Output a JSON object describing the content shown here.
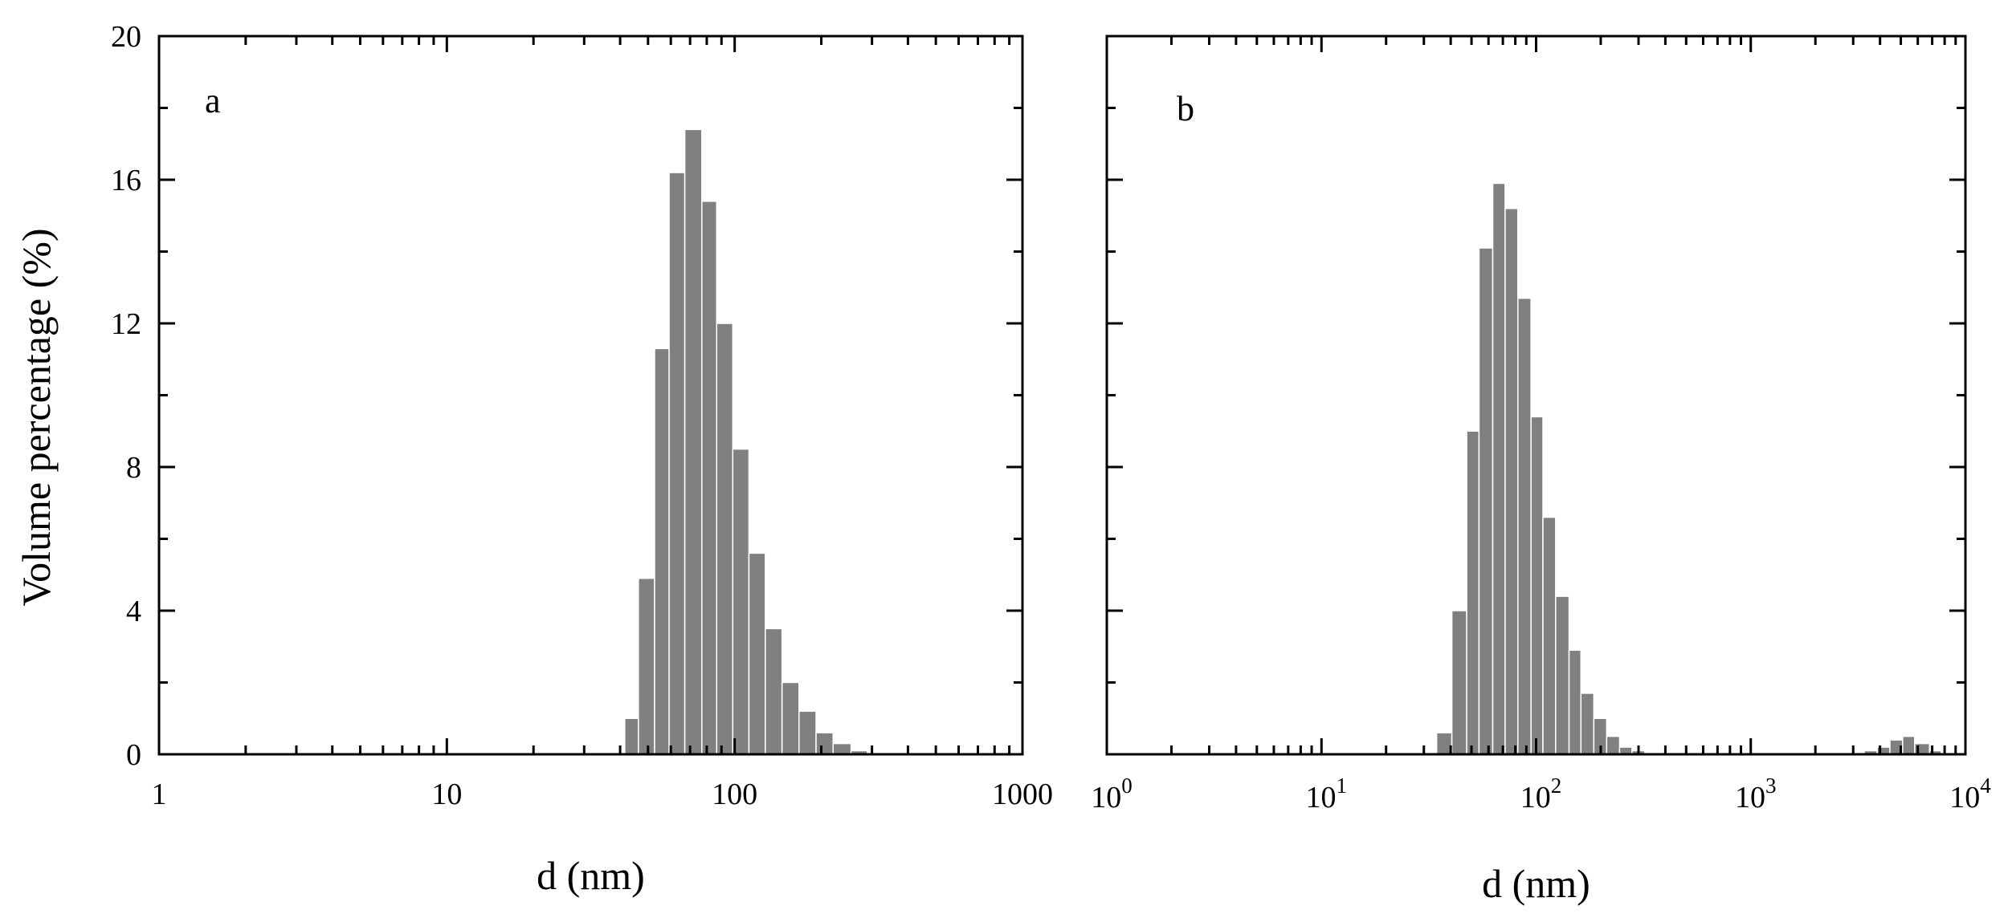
{
  "figure": {
    "ylabel": "Volume percentage (%)",
    "bar_color": "#808080"
  },
  "chart_data": [
    {
      "type": "bar",
      "panel_label": "a",
      "xlabel": "d (nm)",
      "ylabel": "Volume percentage (%)",
      "x_scale": "log",
      "xlim": [
        1,
        1000
      ],
      "ylim": [
        0,
        20
      ],
      "x_ticks": [
        1,
        10,
        100,
        1000
      ],
      "x_tick_labels": [
        "1",
        "10",
        "100",
        "1000"
      ],
      "y_ticks": [
        0,
        4,
        8,
        12,
        16,
        20
      ],
      "y_tick_labels": [
        "0",
        "4",
        "8",
        "12",
        "16",
        "20"
      ],
      "bins": [
        {
          "x0": 41.5,
          "x1": 46.3,
          "value": 1.0
        },
        {
          "x0": 46.3,
          "x1": 52.7,
          "value": 4.9
        },
        {
          "x0": 52.7,
          "x1": 59.2,
          "value": 11.3
        },
        {
          "x0": 59.2,
          "x1": 67.1,
          "value": 16.2
        },
        {
          "x0": 67.1,
          "x1": 76.9,
          "value": 17.4
        },
        {
          "x0": 76.9,
          "x1": 86.6,
          "value": 15.4
        },
        {
          "x0": 86.6,
          "x1": 98.5,
          "value": 12.0
        },
        {
          "x0": 98.5,
          "x1": 112.1,
          "value": 8.5
        },
        {
          "x0": 112.1,
          "x1": 127.8,
          "value": 5.6
        },
        {
          "x0": 127.8,
          "x1": 146.1,
          "value": 3.5
        },
        {
          "x0": 146.1,
          "x1": 167.3,
          "value": 2.0
        },
        {
          "x0": 167.3,
          "x1": 191.8,
          "value": 1.2
        },
        {
          "x0": 191.8,
          "x1": 219.8,
          "value": 0.6
        },
        {
          "x0": 219.8,
          "x1": 253.8,
          "value": 0.3
        },
        {
          "x0": 253.8,
          "x1": 289.0,
          "value": 0.1
        }
      ]
    },
    {
      "type": "bar",
      "panel_label": "b",
      "xlabel": "d (nm)",
      "ylabel": "",
      "x_scale": "log",
      "xlim": [
        1,
        10000
      ],
      "ylim": [
        0,
        20
      ],
      "x_ticks": [
        1,
        10,
        100,
        1000,
        10000
      ],
      "x_tick_labels": [
        {
          "base": "10",
          "exp": "0"
        },
        {
          "base": "10",
          "exp": "1"
        },
        {
          "base": "10",
          "exp": "2"
        },
        {
          "base": "10",
          "exp": "3"
        },
        {
          "base": "10",
          "exp": "4"
        }
      ],
      "y_ticks": [
        0,
        4,
        8,
        12,
        16,
        20
      ],
      "bins": [
        {
          "x0": 34.4,
          "x1": 40.5,
          "value": 0.6
        },
        {
          "x0": 40.5,
          "x1": 47.5,
          "value": 4.0
        },
        {
          "x0": 47.5,
          "x1": 54.2,
          "value": 9.0
        },
        {
          "x0": 54.2,
          "x1": 62.8,
          "value": 14.1
        },
        {
          "x0": 62.8,
          "x1": 71.7,
          "value": 15.9
        },
        {
          "x0": 71.7,
          "x1": 82.2,
          "value": 15.2
        },
        {
          "x0": 82.2,
          "x1": 94.7,
          "value": 12.7
        },
        {
          "x0": 94.7,
          "x1": 107.6,
          "value": 9.4
        },
        {
          "x0": 107.6,
          "x1": 123.3,
          "value": 6.6
        },
        {
          "x0": 123.3,
          "x1": 142.4,
          "value": 4.4
        },
        {
          "x0": 142.4,
          "x1": 161.7,
          "value": 2.9
        },
        {
          "x0": 161.7,
          "x1": 185.7,
          "value": 1.7
        },
        {
          "x0": 185.7,
          "x1": 213.1,
          "value": 1.0
        },
        {
          "x0": 213.1,
          "x1": 244.9,
          "value": 0.5
        },
        {
          "x0": 244.9,
          "x1": 279.5,
          "value": 0.2
        },
        {
          "x0": 279.5,
          "x1": 321.0,
          "value": 0.1
        },
        {
          "x0": 3380,
          "x1": 3880,
          "value": 0.1
        },
        {
          "x0": 3880,
          "x1": 4450,
          "value": 0.2
        },
        {
          "x0": 4450,
          "x1": 5100,
          "value": 0.4
        },
        {
          "x0": 5100,
          "x1": 5800,
          "value": 0.5
        },
        {
          "x0": 5800,
          "x1": 6800,
          "value": 0.3
        },
        {
          "x0": 6800,
          "x1": 7700,
          "value": 0.1
        }
      ]
    }
  ]
}
